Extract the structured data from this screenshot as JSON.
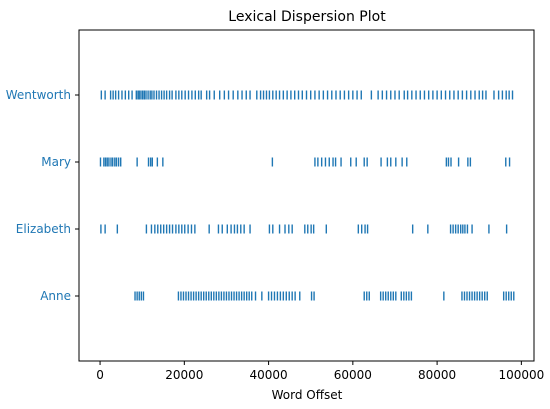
{
  "chart_data": {
    "type": "scatter",
    "title": "Lexical Dispersion Plot",
    "xlabel": "Word Offset",
    "ylabel": "",
    "xlim": [
      -5000,
      103000
    ],
    "x_ticks": [
      0,
      20000,
      40000,
      60000,
      80000,
      100000
    ],
    "x_tick_labels": [
      "0",
      "20000",
      "40000",
      "60000",
      "80000",
      "100000"
    ],
    "y_categories": [
      "Wentworth",
      "Mary",
      "Elizabeth",
      "Anne"
    ],
    "marker": "|",
    "grid": false,
    "legend": "none",
    "series": [
      {
        "name": "Wentworth",
        "color": "#1f77b4",
        "x": [
          300,
          1200,
          2500,
          3100,
          3700,
          4400,
          5200,
          6000,
          6800,
          7600,
          8600,
          9000,
          9300,
          9700,
          10100,
          10500,
          10900,
          11400,
          11900,
          12300,
          12800,
          13400,
          14000,
          14600,
          15200,
          15800,
          16500,
          17100,
          18000,
          18700,
          19400,
          20200,
          21000,
          21800,
          22600,
          23400,
          24000,
          25300,
          26000,
          27100,
          28400,
          29500,
          30500,
          31600,
          32700,
          33700,
          34700,
          35600,
          37200,
          38100,
          38800,
          39500,
          40200,
          41000,
          41800,
          42600,
          43500,
          44400,
          45300,
          46200,
          47100,
          48000,
          49000,
          50000,
          51000,
          52000,
          53000,
          54000,
          55000,
          56000,
          57000,
          58000,
          59000,
          60000,
          61000,
          62000,
          64400,
          66000,
          67000,
          68000,
          69000,
          70000,
          71000,
          72200,
          73000,
          74000,
          75000,
          76000,
          77000,
          78000,
          79000,
          80000,
          81000,
          82000,
          83000,
          84000,
          85000,
          86000,
          87000,
          88000,
          89000,
          90000,
          90800,
          91600,
          93500,
          94600,
          95500,
          96400,
          97100,
          97900
        ]
      },
      {
        "name": "Mary",
        "color": "#1f77b4",
        "x": [
          100,
          900,
          1300,
          1700,
          2100,
          2600,
          3000,
          3500,
          3900,
          4400,
          4900,
          8800,
          11500,
          12000,
          12400,
          13600,
          14900,
          40900,
          51000,
          51700,
          52600,
          53500,
          54400,
          55300,
          55900,
          57200,
          59500,
          60800,
          62700,
          63400,
          66700,
          68200,
          69000,
          70200,
          71700,
          72800,
          82200,
          82700,
          83300,
          85100,
          87300,
          87900,
          96300,
          97200
        ]
      },
      {
        "name": "Elizabeth",
        "color": "#1f77b4",
        "x": [
          200,
          1200,
          4100,
          11000,
          12200,
          13000,
          13700,
          14400,
          15100,
          15800,
          16500,
          17200,
          18000,
          18700,
          19400,
          20100,
          20900,
          21700,
          22500,
          25900,
          28100,
          29000,
          30200,
          31100,
          31900,
          32600,
          33400,
          34200,
          35600,
          40200,
          41000,
          42600,
          43900,
          44800,
          45600,
          48600,
          49300,
          50100,
          50700,
          53700,
          61300,
          62100,
          62900,
          63500,
          74200,
          77800,
          83200,
          83800,
          84400,
          85000,
          85600,
          86100,
          86600,
          87200,
          88300,
          92300,
          96500
        ]
      },
      {
        "name": "Anne",
        "color": "#1f77b4",
        "x": [
          8300,
          8800,
          9300,
          9800,
          10300,
          18600,
          19200,
          19800,
          20400,
          21000,
          21600,
          22200,
          22800,
          23400,
          24000,
          24600,
          25200,
          25800,
          26400,
          27000,
          27600,
          28200,
          28800,
          29400,
          30000,
          30600,
          31200,
          31800,
          32400,
          33000,
          33600,
          34200,
          34800,
          35400,
          36000,
          36900,
          38400,
          40000,
          40700,
          41400,
          42100,
          42800,
          43500,
          44200,
          44900,
          45600,
          46300,
          47400,
          50200,
          50800,
          62700,
          63300,
          63900,
          66600,
          67200,
          67800,
          68400,
          69000,
          69600,
          70200,
          71500,
          72100,
          72700,
          73300,
          73900,
          81600,
          85900,
          86500,
          87100,
          87700,
          88300,
          88900,
          89500,
          90100,
          90700,
          91300,
          91900,
          95800,
          96400,
          97000,
          97600,
          98200
        ]
      }
    ]
  }
}
